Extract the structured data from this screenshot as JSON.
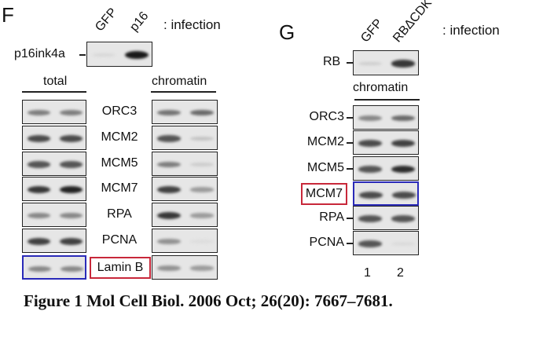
{
  "panel_f": {
    "label": "F",
    "lanes": [
      "GFP",
      "p16"
    ],
    "infection_label": ": infection",
    "marker_blot": {
      "label": "p16ink4a",
      "bands": [
        0.05,
        1.0
      ]
    },
    "total_header": "total",
    "chromatin_header": "chromatin",
    "rows": [
      {
        "label": "ORC3",
        "total": [
          0.5,
          0.5
        ],
        "chromatin": [
          0.55,
          0.6
        ]
      },
      {
        "label": "MCM2",
        "total": [
          0.75,
          0.75
        ],
        "chromatin": [
          0.7,
          0.15
        ]
      },
      {
        "label": "MCM5",
        "total": [
          0.7,
          0.7
        ],
        "chromatin": [
          0.5,
          0.1
        ]
      },
      {
        "label": "MCM7",
        "total": [
          0.85,
          0.95
        ],
        "chromatin": [
          0.8,
          0.35
        ]
      },
      {
        "label": "RPA",
        "total": [
          0.45,
          0.45
        ],
        "chromatin": [
          0.85,
          0.35
        ]
      },
      {
        "label": "PCNA",
        "total": [
          0.8,
          0.8
        ],
        "chromatin": [
          0.4,
          0.02
        ]
      },
      {
        "label": "Lamin B",
        "total": [
          0.45,
          0.45
        ],
        "chromatin": [
          0.4,
          0.35
        ],
        "highlighted": true
      }
    ]
  },
  "panel_g": {
    "label": "G",
    "lanes": [
      "GFP",
      "RBΔCDK"
    ],
    "infection_label": ": infection",
    "marker_blot": {
      "label": "RB",
      "bands": [
        0.1,
        0.85
      ]
    },
    "chromatin_header": "chromatin",
    "rows": [
      {
        "label": "ORC3",
        "chromatin": [
          0.45,
          0.6
        ]
      },
      {
        "label": "MCM2",
        "chromatin": [
          0.75,
          0.8
        ]
      },
      {
        "label": "MCM5",
        "chromatin": [
          0.7,
          0.9
        ]
      },
      {
        "label": "MCM7",
        "chromatin": [
          0.75,
          0.75
        ],
        "highlighted": true
      },
      {
        "label": "RPA",
        "chromatin": [
          0.7,
          0.7
        ]
      },
      {
        "label": "PCNA",
        "chromatin": [
          0.7,
          0.03
        ]
      }
    ],
    "lane_numbers": [
      "1",
      "2"
    ]
  },
  "caption": "Figure 1 Mol Cell Biol. 2006 Oct; 26(20): 7667–7681.",
  "colors": {
    "highlight_blue": "#2a2ab8",
    "highlight_red": "#c8283a"
  }
}
